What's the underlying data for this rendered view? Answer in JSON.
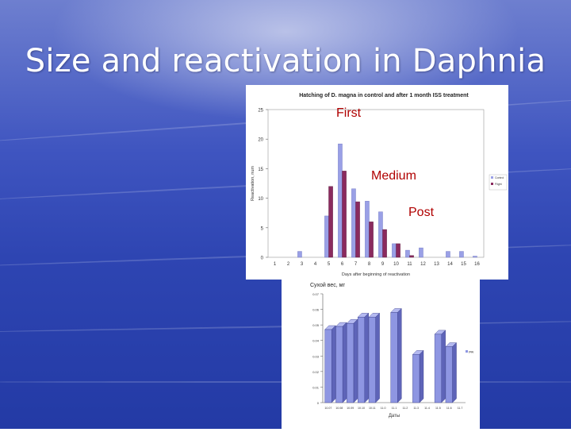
{
  "slide": {
    "title": "Size and reactivation in Daphnia"
  },
  "annotations": {
    "first": "First",
    "medium": "Medium",
    "post": "Post"
  },
  "colors": {
    "control": "#9aa0e6",
    "iss": "#8a2a5e",
    "bars2": "#8e96e2"
  },
  "chart_data": [
    {
      "type": "bar",
      "title": "Hatching of D. magna in control and after 1 month ISS treatment",
      "xlabel": "Days after beginning of reactivation",
      "ylabel": "Reactivation, num",
      "ylim": [
        0,
        25
      ],
      "yticks": [
        "0",
        "5",
        "10",
        "15",
        "20",
        "25"
      ],
      "categories": [
        "1",
        "2",
        "3",
        "4",
        "5",
        "6",
        "7",
        "8",
        "9",
        "10",
        "11",
        "12",
        "13",
        "14",
        "15",
        "16"
      ],
      "series": [
        {
          "name": "Control",
          "values": [
            0,
            0,
            1,
            0,
            7,
            19.2,
            11.6,
            9.5,
            7.7,
            2.3,
            1.2,
            1.6,
            0,
            1,
            1,
            0.2
          ]
        },
        {
          "name": "Flight",
          "values": [
            0,
            0,
            0,
            0,
            12,
            14.6,
            9.4,
            6,
            4.7,
            2.3,
            0.3,
            0,
            0,
            0,
            0,
            0
          ]
        }
      ],
      "legend": "right"
    },
    {
      "type": "bar",
      "title": "Сухой вес, мг",
      "xlabel": "Даты",
      "ylabel": "",
      "ylim": [
        0,
        0.07
      ],
      "yticks": [
        "0",
        "0.01",
        "0.02",
        "0.03",
        "0.04",
        "0.05",
        "0.06",
        "0.07"
      ],
      "categories": [
        "10.07",
        "10.08",
        "10.09",
        "10.10",
        "10.11",
        "11.0",
        "11.1",
        "11.2",
        "11.3",
        "11.4",
        "11.5",
        "11.6",
        "11.7"
      ],
      "values": [
        0.047,
        0.049,
        0.051,
        0.055,
        0.055,
        0,
        0.058,
        0,
        0.031,
        0,
        0.044,
        0.036,
        0
      ],
      "legend_entry": "ряд",
      "legend": "right"
    }
  ]
}
